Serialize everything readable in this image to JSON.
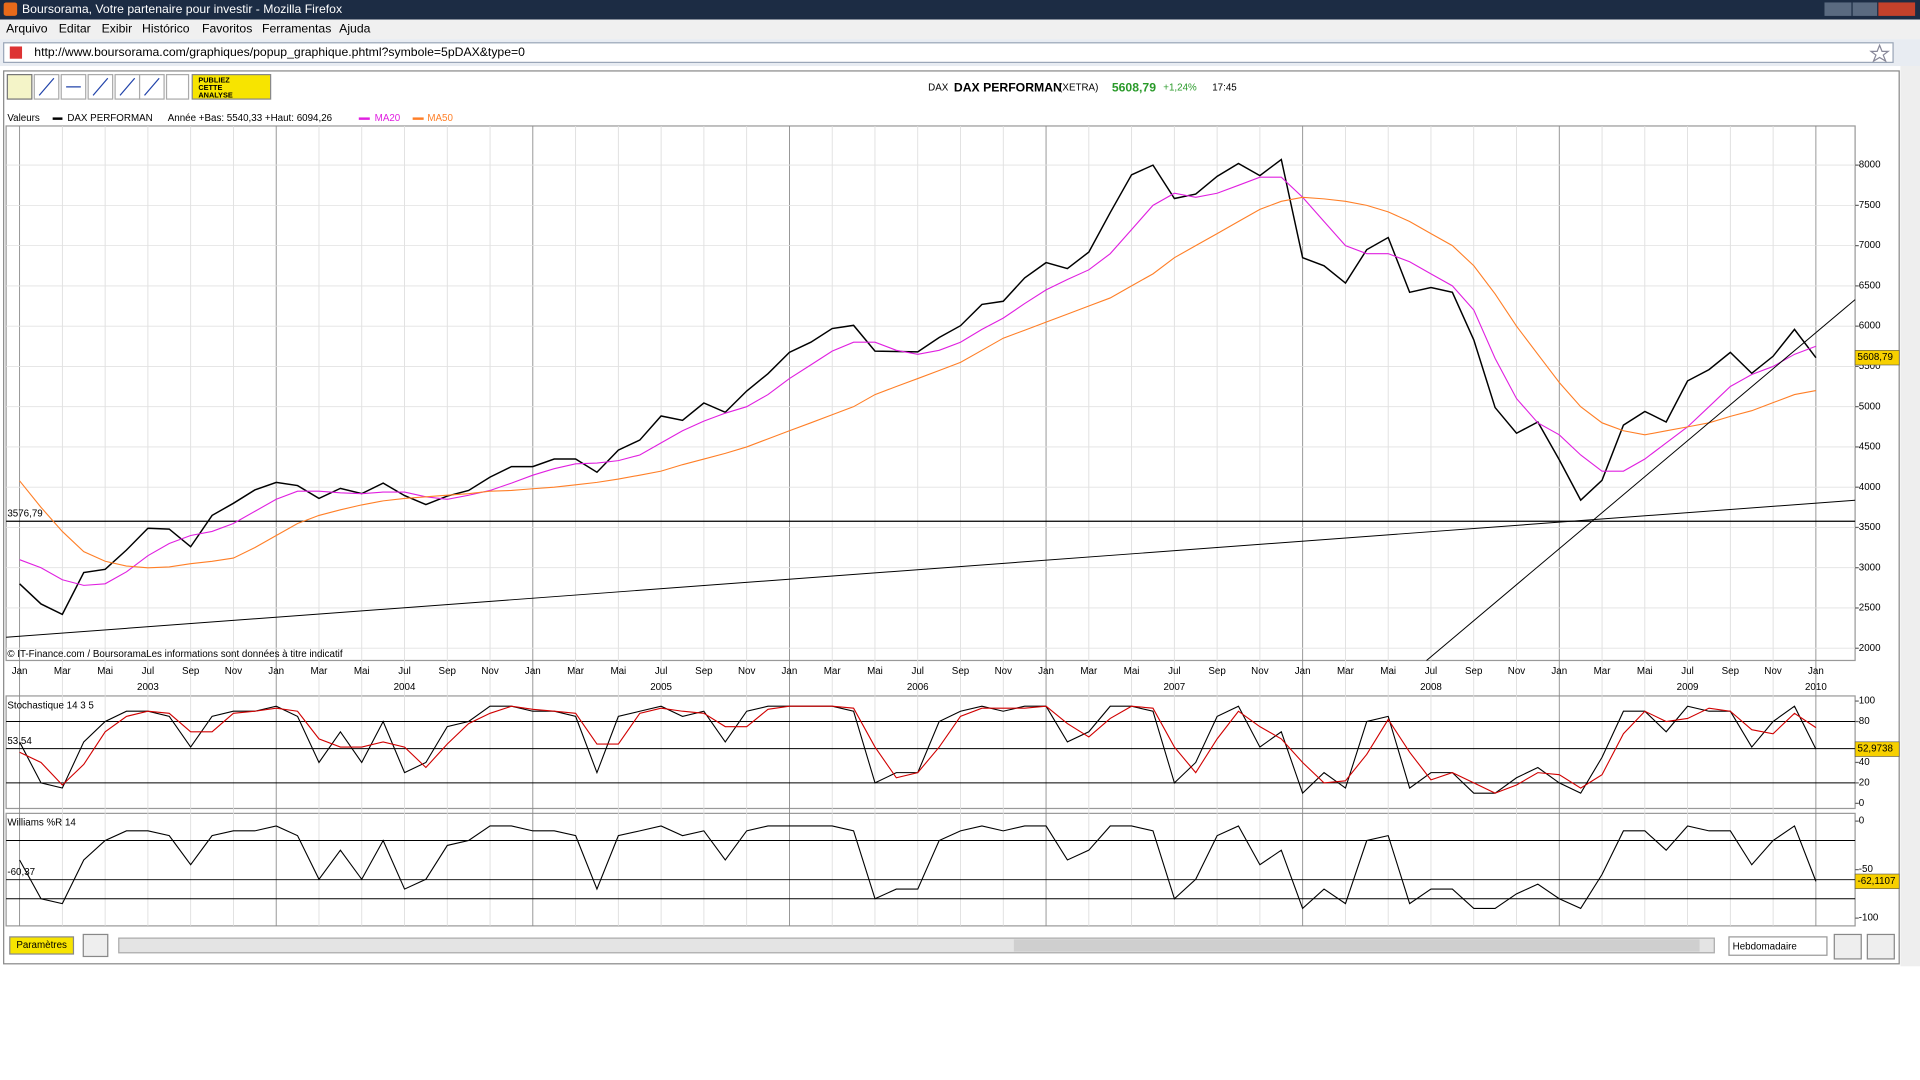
{
  "window": {
    "title": "Boursorama, Votre partenaire pour investir - Mozilla Firefox"
  },
  "menu": [
    "Arquivo",
    "Editar",
    "Exibir",
    "Histórico",
    "Favoritos",
    "Ferramentas",
    "Ajuda"
  ],
  "address": "http://www.boursorama.com/graphiques/popup_graphique.phtml?symbole=5pDAX&type=0",
  "toolbar": {
    "publish": [
      "PUBLIEZ",
      "CETTE",
      "ANALYSE"
    ]
  },
  "header": {
    "market": "DAX",
    "name": "DAX PERFORMAN",
    "exchange": "(XETRA)",
    "price": "5608,79",
    "change": "+1,24%",
    "time": "17:45"
  },
  "chart_data": [
    {
      "type": "line",
      "legend_title": "Valeurs",
      "range_note": "Année +Bas: 5540,33 +Haut: 6094,26",
      "source": "© IT-Finance.com / BoursoramaLes informations sont données à titre indicatif",
      "x": [
        "2003-01",
        "2003-02",
        "2003-03",
        "2003-04",
        "2003-05",
        "2003-06",
        "2003-07",
        "2003-08",
        "2003-09",
        "2003-10",
        "2003-11",
        "2003-12",
        "2004-01",
        "2004-02",
        "2004-03",
        "2004-04",
        "2004-05",
        "2004-06",
        "2004-07",
        "2004-08",
        "2004-09",
        "2004-10",
        "2004-11",
        "2004-12",
        "2005-01",
        "2005-02",
        "2005-03",
        "2005-04",
        "2005-05",
        "2005-06",
        "2005-07",
        "2005-08",
        "2005-09",
        "2005-10",
        "2005-11",
        "2005-12",
        "2006-01",
        "2006-02",
        "2006-03",
        "2006-04",
        "2006-05",
        "2006-06",
        "2006-07",
        "2006-08",
        "2006-09",
        "2006-10",
        "2006-11",
        "2006-12",
        "2007-01",
        "2007-02",
        "2007-03",
        "2007-04",
        "2007-05",
        "2007-06",
        "2007-07",
        "2007-08",
        "2007-09",
        "2007-10",
        "2007-11",
        "2007-12",
        "2008-01",
        "2008-02",
        "2008-03",
        "2008-04",
        "2008-05",
        "2008-06",
        "2008-07",
        "2008-08",
        "2008-09",
        "2008-10",
        "2008-11",
        "2008-12",
        "2009-01",
        "2009-02",
        "2009-03",
        "2009-04",
        "2009-05",
        "2009-06",
        "2009-07",
        "2009-08",
        "2009-09",
        "2009-10",
        "2009-11",
        "2009-12",
        "2010-01"
      ],
      "series": [
        {
          "name": "DAX PERFORMAN",
          "color": "#000000",
          "values": [
            2800,
            2550,
            2420,
            2940,
            2980,
            3220,
            3490,
            3480,
            3260,
            3650,
            3800,
            3965,
            4060,
            4020,
            3860,
            3985,
            3920,
            4050,
            3895,
            3785,
            3890,
            3960,
            4125,
            4255,
            4255,
            4350,
            4350,
            4185,
            4460,
            4585,
            4885,
            4830,
            5045,
            4930,
            5195,
            5410,
            5675,
            5800,
            5970,
            6010,
            5690,
            5685,
            5680,
            5860,
            6005,
            6270,
            6310,
            6600,
            6790,
            6715,
            6920,
            7410,
            7880,
            8000,
            7585,
            7640,
            7860,
            8020,
            7870,
            8070,
            6850,
            6750,
            6535,
            6950,
            7100,
            6420,
            6480,
            6420,
            5830,
            4990,
            4670,
            4810,
            4340,
            3840,
            4085,
            4770,
            4940,
            4810,
            5320,
            5460,
            5675,
            5415,
            5625,
            5960,
            5608.79
          ]
        },
        {
          "name": "MA20",
          "color": "#e020e0",
          "values": [
            3100,
            3000,
            2850,
            2780,
            2800,
            2950,
            3150,
            3300,
            3400,
            3450,
            3550,
            3700,
            3850,
            3950,
            3950,
            3930,
            3920,
            3940,
            3940,
            3880,
            3850,
            3900,
            3960,
            4050,
            4150,
            4230,
            4290,
            4300,
            4330,
            4400,
            4550,
            4700,
            4820,
            4920,
            5000,
            5150,
            5350,
            5520,
            5690,
            5800,
            5800,
            5700,
            5650,
            5700,
            5800,
            5960,
            6100,
            6280,
            6450,
            6580,
            6700,
            6900,
            7200,
            7500,
            7650,
            7600,
            7650,
            7750,
            7850,
            7850,
            7600,
            7300,
            7000,
            6900,
            6900,
            6800,
            6650,
            6500,
            6200,
            5600,
            5100,
            4800,
            4650,
            4400,
            4200,
            4200,
            4350,
            4550,
            4750,
            5000,
            5250,
            5400,
            5500,
            5650,
            5750
          ]
        },
        {
          "name": "MA50",
          "color": "#ff7f27",
          "values": [
            4080,
            3750,
            3450,
            3200,
            3080,
            3020,
            3000,
            3010,
            3050,
            3080,
            3120,
            3250,
            3400,
            3550,
            3650,
            3720,
            3780,
            3830,
            3860,
            3880,
            3900,
            3920,
            3950,
            3960,
            3980,
            4000,
            4030,
            4060,
            4100,
            4150,
            4200,
            4280,
            4350,
            4420,
            4500,
            4600,
            4700,
            4800,
            4900,
            5000,
            5150,
            5250,
            5350,
            5450,
            5550,
            5700,
            5850,
            5950,
            6050,
            6150,
            6250,
            6350,
            6500,
            6650,
            6850,
            7000,
            7150,
            7300,
            7450,
            7550,
            7600,
            7580,
            7550,
            7500,
            7420,
            7300,
            7150,
            7000,
            6750,
            6400,
            6000,
            5650,
            5300,
            5000,
            4800,
            4700,
            4650,
            4700,
            4750,
            4800,
            4880,
            4950,
            5050,
            5150,
            5200
          ]
        }
      ],
      "hline": {
        "value": 3576.79,
        "label": "3576,79"
      },
      "last_value": {
        "value": 5608.79,
        "label": "5608,79"
      },
      "ylim": [
        1848,
        8486
      ],
      "yticks": [
        2000,
        2500,
        3000,
        3500,
        4000,
        4500,
        5000,
        5500,
        6000,
        6500,
        7000,
        7500,
        8000
      ],
      "xticks": [
        {
          "value": "2003-01",
          "label": "Jan"
        },
        {
          "value": "2003-03",
          "label": "Mar"
        },
        {
          "value": "2003-05",
          "label": "Mai"
        },
        {
          "value": "2003-07",
          "label": "Jul"
        },
        {
          "value": "2003-09",
          "label": "Sep"
        },
        {
          "value": "2003-11",
          "label": "Nov"
        },
        {
          "value": "2004-01",
          "label": "Jan"
        },
        {
          "value": "2004-03",
          "label": "Mar"
        },
        {
          "value": "2004-05",
          "label": "Mai"
        },
        {
          "value": "2004-07",
          "label": "Jul"
        },
        {
          "value": "2004-09",
          "label": "Sep"
        },
        {
          "value": "2004-11",
          "label": "Nov"
        },
        {
          "value": "2005-01",
          "label": "Jan"
        },
        {
          "value": "2005-03",
          "label": "Mar"
        },
        {
          "value": "2005-05",
          "label": "Mai"
        },
        {
          "value": "2005-07",
          "label": "Jul"
        },
        {
          "value": "2005-09",
          "label": "Sep"
        },
        {
          "value": "2005-11",
          "label": "Nov"
        },
        {
          "value": "2006-01",
          "label": "Jan"
        },
        {
          "value": "2006-03",
          "label": "Mar"
        },
        {
          "value": "2006-05",
          "label": "Mai"
        },
        {
          "value": "2006-07",
          "label": "Jul"
        },
        {
          "value": "2006-09",
          "label": "Sep"
        },
        {
          "value": "2006-11",
          "label": "Nov"
        },
        {
          "value": "2007-01",
          "label": "Jan"
        },
        {
          "value": "2007-03",
          "label": "Mar"
        },
        {
          "value": "2007-05",
          "label": "Mai"
        },
        {
          "value": "2007-07",
          "label": "Jul"
        },
        {
          "value": "2007-09",
          "label": "Sep"
        },
        {
          "value": "2007-11",
          "label": "Nov"
        },
        {
          "value": "2008-01",
          "label": "Jan"
        },
        {
          "value": "2008-03",
          "label": "Mar"
        },
        {
          "value": "2008-05",
          "label": "Mai"
        },
        {
          "value": "2008-07",
          "label": "Jul"
        },
        {
          "value": "2008-09",
          "label": "Sep"
        },
        {
          "value": "2008-11",
          "label": "Nov"
        },
        {
          "value": "2009-01",
          "label": "Jan"
        },
        {
          "value": "2009-03",
          "label": "Mar"
        },
        {
          "value": "2009-05",
          "label": "Mai"
        },
        {
          "value": "2009-07",
          "label": "Jul"
        },
        {
          "value": "2009-09",
          "label": "Sep"
        },
        {
          "value": "2009-11",
          "label": "Nov"
        },
        {
          "value": "2010-01",
          "label": "Jan"
        }
      ],
      "years": [
        {
          "value": "2003-07",
          "label": "2003"
        },
        {
          "value": "2004-07",
          "label": "2004"
        },
        {
          "value": "2005-07",
          "label": "2005"
        },
        {
          "value": "2006-07",
          "label": "2006"
        },
        {
          "value": "2007-07",
          "label": "2007"
        },
        {
          "value": "2008-07",
          "label": "2008"
        },
        {
          "value": "2009-07",
          "label": "2009"
        },
        {
          "value": "2010-01",
          "label": "2010"
        }
      ],
      "grid": true
    },
    {
      "type": "line",
      "title": "Stochastique 14 3 5",
      "series": [
        {
          "name": "%K",
          "color": "#000000",
          "values": [
            60,
            20,
            15,
            60,
            80,
            90,
            90,
            85,
            55,
            85,
            90,
            90,
            95,
            85,
            40,
            70,
            40,
            80,
            30,
            40,
            75,
            80,
            95,
            95,
            90,
            90,
            85,
            30,
            85,
            90,
            95,
            85,
            90,
            60,
            90,
            95,
            95,
            95,
            95,
            90,
            20,
            30,
            30,
            80,
            90,
            95,
            90,
            95,
            95,
            60,
            70,
            95,
            95,
            90,
            20,
            40,
            85,
            95,
            55,
            70,
            10,
            30,
            15,
            80,
            85,
            15,
            30,
            30,
            10,
            10,
            25,
            35,
            20,
            10,
            45,
            90,
            90,
            70,
            95,
            90,
            90,
            55,
            80,
            95,
            52.9738
          ]
        },
        {
          "name": "%D",
          "color": "#d00000",
          "values": [
            50,
            40,
            18,
            38,
            70,
            85,
            90,
            88,
            70,
            70,
            88,
            90,
            93,
            90,
            63,
            55,
            55,
            60,
            55,
            35,
            58,
            78,
            88,
            95,
            92,
            90,
            88,
            58,
            58,
            88,
            93,
            90,
            88,
            75,
            75,
            92,
            95,
            95,
            95,
            93,
            55,
            25,
            30,
            55,
            85,
            93,
            93,
            93,
            95,
            78,
            65,
            83,
            95,
            93,
            55,
            30,
            63,
            90,
            75,
            63,
            40,
            20,
            22,
            48,
            82,
            50,
            23,
            30,
            20,
            10,
            18,
            30,
            28,
            15,
            28,
            68,
            90,
            80,
            83,
            93,
            90,
            72,
            68,
            88,
            74
          ]
        }
      ],
      "ref": {
        "value": 53.54,
        "label": "53,54"
      },
      "last_value": {
        "value": 52.9738,
        "label": "52,9738"
      },
      "levels": [
        20,
        80
      ],
      "ylim": [
        -5,
        105
      ],
      "yticks": [
        0,
        20,
        40,
        80,
        100
      ]
    },
    {
      "type": "line",
      "title": "Williams %R 14",
      "series": [
        {
          "name": "%R",
          "color": "#000000",
          "values": [
            -40,
            -80,
            -85,
            -40,
            -20,
            -10,
            -10,
            -15,
            -45,
            -15,
            -10,
            -10,
            -5,
            -15,
            -60,
            -30,
            -60,
            -20,
            -70,
            -60,
            -25,
            -20,
            -5,
            -5,
            -10,
            -10,
            -15,
            -70,
            -15,
            -10,
            -5,
            -15,
            -10,
            -40,
            -10,
            -5,
            -5,
            -5,
            -5,
            -10,
            -80,
            -70,
            -70,
            -20,
            -10,
            -5,
            -10,
            -5,
            -5,
            -40,
            -30,
            -5,
            -5,
            -10,
            -80,
            -60,
            -15,
            -5,
            -45,
            -30,
            -90,
            -70,
            -85,
            -20,
            -15,
            -85,
            -70,
            -70,
            -90,
            -90,
            -75,
            -65,
            -80,
            -90,
            -55,
            -10,
            -10,
            -30,
            -5,
            -10,
            -10,
            -45,
            -20,
            -5,
            -62.1107
          ]
        }
      ],
      "ref": {
        "value": -60.37,
        "label": "-60,37"
      },
      "last_value": {
        "value": -62.1107,
        "label": "-62,1107"
      },
      "levels": [
        -20,
        -80
      ],
      "ylim": [
        -108,
        8
      ],
      "yticks": [
        0,
        -50,
        -100
      ]
    }
  ],
  "footer": {
    "settings": "Paramètres",
    "period": "Hebdomadaire"
  }
}
